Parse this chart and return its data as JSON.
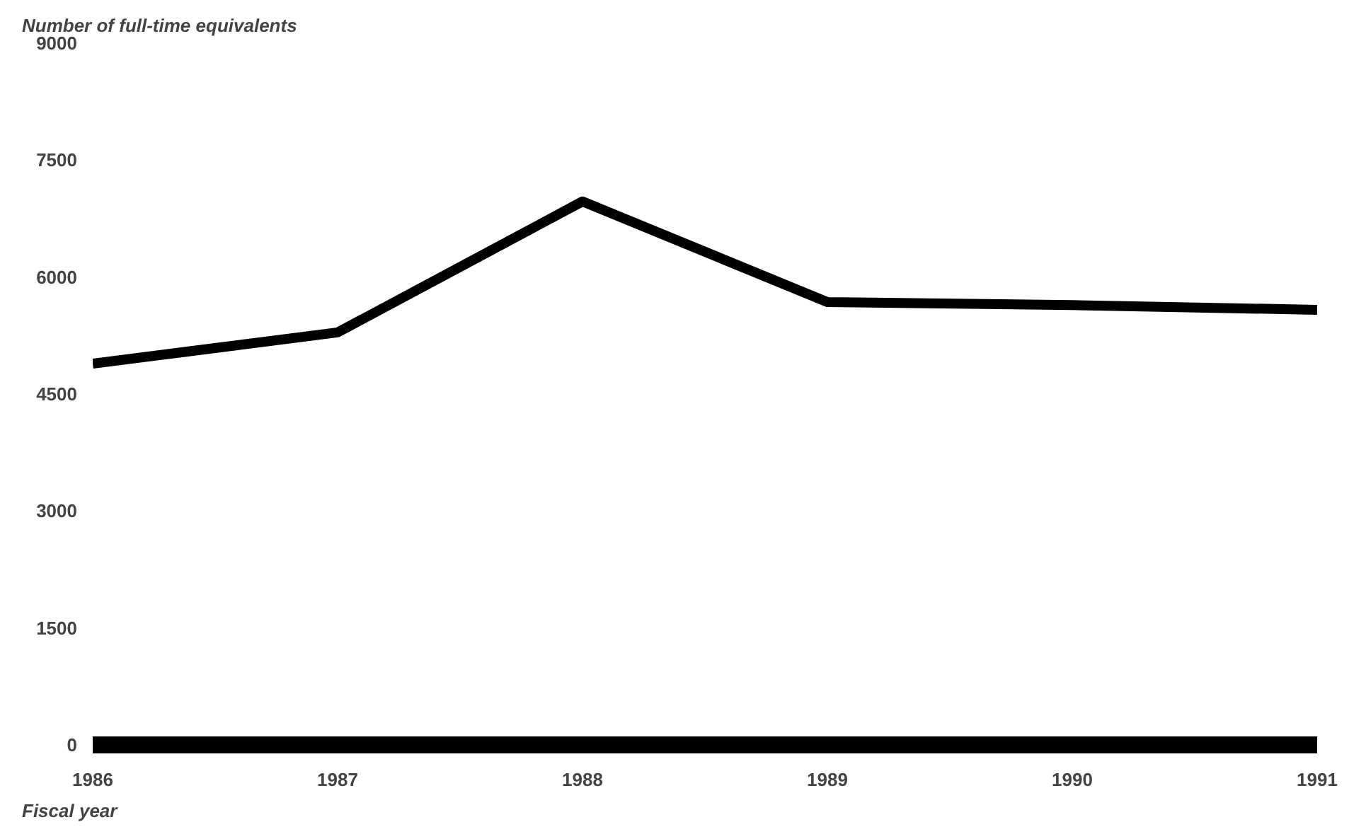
{
  "chart_data": {
    "type": "line",
    "ylabel": "Number of full-time equivalents",
    "xlabel": "Fiscal year",
    "x": [
      1986,
      1987,
      1988,
      1989,
      1990,
      1991
    ],
    "series": [
      {
        "color": "#000000",
        "values": [
          4890,
          5290,
          6970,
          5680,
          5640,
          5580
        ]
      }
    ],
    "xlim": [
      1986,
      1991
    ],
    "xticks": [
      1986,
      1987,
      1988,
      1989,
      1990,
      1991
    ],
    "ylim": [
      0,
      9000
    ],
    "yticks": [
      0,
      1500,
      3000,
      4500,
      6000,
      7500,
      9000
    ],
    "grid": false,
    "marker": "none",
    "line_style": "solid"
  }
}
